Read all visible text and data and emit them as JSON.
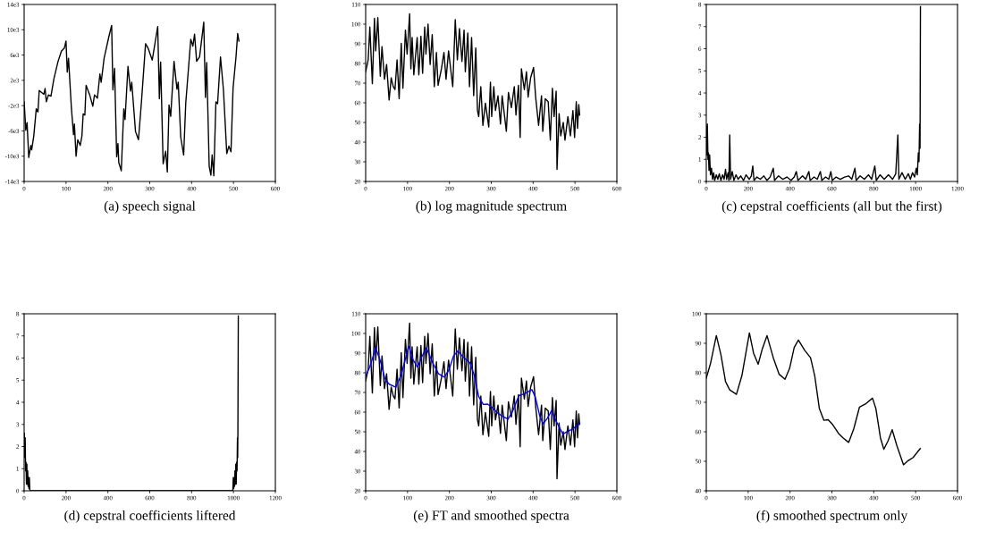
{
  "chart_data": [
    {
      "type": "line",
      "title": "(a) speech signal",
      "xlim": [
        0,
        600
      ],
      "xticks": [
        0,
        100,
        200,
        300,
        400,
        500,
        600
      ],
      "ylim": [
        -14000,
        14000
      ],
      "yticks": [
        {
          "value": -14000,
          "label": "-14e3"
        },
        {
          "value": -10000,
          "label": "-10e3"
        },
        {
          "value": -6000,
          "label": "-6e3"
        },
        {
          "value": -2000,
          "label": "-2e3"
        },
        {
          "value": 2000,
          "label": "2e3"
        },
        {
          "value": 6000,
          "label": "6e3"
        },
        {
          "value": 10000,
          "label": "10e3"
        },
        {
          "value": 14000,
          "label": "14e3"
        }
      ],
      "series": [
        {
          "color": "#000000",
          "x": [
            0,
            4,
            7,
            11,
            16,
            18,
            23,
            29,
            33,
            36,
            47,
            50,
            53,
            58,
            64,
            71,
            81,
            89,
            96,
            100,
            103,
            106,
            113,
            118,
            120,
            124,
            128,
            134,
            138,
            141,
            145,
            148,
            152,
            157,
            164,
            168,
            175,
            181,
            184,
            191,
            202,
            209,
            212,
            216,
            221,
            224,
            226,
            232,
            238,
            241,
            248,
            254,
            257,
            266,
            273,
            280,
            290,
            296,
            306,
            319,
            323,
            326,
            332,
            338,
            342,
            346,
            350,
            358,
            365,
            368,
            374,
            381,
            386,
            398,
            403,
            407,
            412,
            419,
            429,
            433,
            436,
            442,
            446,
            449,
            453,
            458,
            462,
            469,
            476,
            484,
            489,
            494,
            499,
            506,
            510,
            513
          ],
          "values": [
            -1400,
            -5900,
            -4700,
            -10200,
            -8300,
            -9000,
            -6800,
            -2500,
            -3000,
            400,
            -200,
            700,
            -1400,
            -300,
            -500,
            2200,
            5000,
            6600,
            7100,
            8200,
            3300,
            5500,
            -2500,
            -6600,
            -4900,
            -10000,
            -7400,
            -8300,
            -6800,
            -3300,
            -3500,
            1200,
            500,
            -400,
            -2100,
            -300,
            -800,
            3000,
            1700,
            5500,
            8800,
            10700,
            500,
            3900,
            -10100,
            -8000,
            -11000,
            -12300,
            -2500,
            -4200,
            4200,
            300,
            1700,
            -6100,
            -7400,
            -1600,
            7800,
            7100,
            5200,
            10500,
            -900,
            4900,
            -11200,
            -9200,
            -12500,
            -1900,
            -3700,
            5000,
            600,
            1700,
            -7000,
            -9800,
            -1600,
            8500,
            7400,
            9300,
            5000,
            5700,
            11200,
            -700,
            4800,
            -11600,
            -13000,
            -9800,
            -13100,
            -1400,
            -1700,
            5700,
            500,
            -9600,
            -8400,
            -9300,
            800,
            5700,
            9400,
            8200
          ]
        }
      ]
    },
    {
      "type": "line",
      "title": "(b) log magnitude spectrum",
      "xlim": [
        0,
        600
      ],
      "xticks": [
        0,
        100,
        200,
        300,
        400,
        500,
        600
      ],
      "ylim": [
        20,
        110
      ],
      "yticks": [
        20,
        30,
        40,
        50,
        60,
        70,
        80,
        90,
        100,
        110
      ],
      "series": [
        {
          "color": "#000000",
          "x": [
            0,
            6,
            10,
            16,
            21,
            24,
            29,
            35,
            39,
            45,
            50,
            56,
            61,
            66,
            70,
            75,
            80,
            85,
            89,
            95,
            99,
            105,
            108,
            111,
            115,
            123,
            127,
            132,
            136,
            141,
            144,
            149,
            154,
            159,
            164,
            169,
            173,
            181,
            187,
            192,
            198,
            208,
            214,
            219,
            224,
            230,
            235,
            238,
            244,
            248,
            253,
            258,
            263,
            267,
            270,
            275,
            280,
            286,
            294,
            298,
            301,
            306,
            310,
            316,
            322,
            326,
            336,
            341,
            348,
            355,
            359,
            365,
            369,
            372,
            379,
            384,
            388,
            394,
            401,
            406,
            413,
            420,
            423,
            429,
            436,
            441,
            446,
            450,
            455,
            457,
            462,
            466,
            472,
            476,
            483,
            489,
            495,
            499,
            503,
            506,
            509,
            511
          ],
          "values": [
            75.8,
            81.8,
            98.5,
            69.7,
            103,
            86.4,
            103.3,
            73.5,
            88.6,
            72,
            79.5,
            61.4,
            72.7,
            68.2,
            66.7,
            81.8,
            62.1,
            90.2,
            67.4,
            97,
            84.8,
            105.3,
            77.3,
            93.2,
            74.2,
            93.2,
            74.2,
            93.9,
            75,
            98.5,
            84.8,
            100,
            79.5,
            94.7,
            68.2,
            85.6,
            68.9,
            77.3,
            85.6,
            72,
            86.4,
            68.2,
            102.3,
            81.8,
            97.7,
            81,
            97,
            75.8,
            95.5,
            68.2,
            93.2,
            63.6,
            87.9,
            56.1,
            53,
            68.2,
            48.5,
            59.8,
            47.7,
            70.5,
            53,
            68.2,
            56.1,
            63.6,
            49.2,
            63.6,
            45.5,
            65.2,
            57.6,
            68.2,
            53.8,
            68.9,
            42.4,
            77.3,
            66.7,
            75.8,
            62.9,
            72.7,
            78,
            62.9,
            48.5,
            63.6,
            45.5,
            62.1,
            60.6,
            41,
            67.4,
            53,
            65.9,
            26.1,
            54.5,
            43.2,
            50,
            41,
            53,
            43.2,
            56.1,
            42.4,
            60.6,
            47,
            59.1,
            53.8
          ]
        }
      ]
    },
    {
      "type": "line",
      "title": "(c) cepstral coefficients (all but the first)",
      "xlim": [
        0,
        1200
      ],
      "xticks": [
        0,
        200,
        400,
        600,
        800,
        1000,
        1200
      ],
      "ylim": [
        0,
        8
      ],
      "yticks": [
        0,
        1,
        2,
        3,
        4,
        5,
        6,
        7,
        8
      ],
      "series": [
        {
          "color": "#000000",
          "x": [
            1,
            3,
            5,
            8,
            10,
            13,
            16,
            20,
            25,
            30,
            35,
            40,
            48,
            55,
            62,
            70,
            78,
            85,
            92,
            97,
            104,
            108,
            112,
            116,
            124,
            132,
            142,
            152,
            165,
            178,
            190,
            205,
            215,
            222,
            228,
            242,
            258,
            275,
            290,
            305,
            320,
            326,
            345,
            365,
            385,
            405,
            420,
            430,
            438,
            460,
            475,
            490,
            496,
            515,
            530,
            545,
            552,
            570,
            585,
            595,
            602,
            620,
            640,
            660,
            680,
            695,
            710,
            716,
            735,
            755,
            775,
            790,
            805,
            812,
            830,
            850,
            870,
            890,
            905,
            915,
            920,
            935,
            950,
            965,
            975,
            985,
            995,
            1003,
            1008,
            1013,
            1016,
            1019,
            1021,
            1023
          ],
          "values": [
            2.5,
            1.2,
            2.6,
            1.0,
            1.3,
            0.5,
            1.2,
            0.3,
            0.6,
            0.1,
            0.4,
            0.05,
            0.3,
            0.1,
            0.35,
            0.05,
            0.3,
            0.1,
            0.55,
            0.1,
            0.4,
            0.05,
            2.1,
            0.1,
            0.45,
            0.05,
            0.3,
            0.1,
            0.25,
            0.05,
            0.3,
            0.1,
            0.25,
            0.7,
            0.05,
            0.2,
            0.1,
            0.25,
            0.05,
            0.2,
            0.6,
            0.05,
            0.25,
            0.1,
            0.2,
            0.05,
            0.2,
            0.45,
            0.05,
            0.25,
            0.1,
            0.45,
            0.05,
            0.2,
            0.1,
            0.45,
            0.05,
            0.2,
            0.1,
            0.45,
            0.05,
            0.2,
            0.1,
            0.2,
            0.25,
            0.1,
            0.6,
            0.05,
            0.25,
            0.1,
            0.3,
            0.1,
            0.7,
            0.05,
            0.3,
            0.1,
            0.3,
            0.1,
            0.35,
            2.1,
            0.1,
            0.4,
            0.1,
            0.35,
            0.1,
            0.4,
            0.2,
            0.6,
            0.3,
            1.3,
            0.9,
            2.6,
            1.5,
            7.9
          ]
        }
      ]
    },
    {
      "type": "line",
      "title": "(d) cepstral coefficients liftered",
      "xlim": [
        0,
        1200
      ],
      "xticks": [
        0,
        200,
        400,
        600,
        800,
        1000,
        1200
      ],
      "ylim": [
        0,
        8
      ],
      "yticks": [
        0,
        1,
        2,
        3,
        4,
        5,
        6,
        7,
        8
      ],
      "series": [
        {
          "color": "#000000",
          "x": [
            1,
            3,
            5,
            7,
            9,
            11,
            13,
            15,
            17,
            19,
            21,
            23,
            25,
            27,
            29,
            995,
            997,
            999,
            1001,
            1003,
            1005,
            1007,
            1009,
            1011,
            1013,
            1015,
            1017,
            1019,
            1020,
            1021,
            1023
          ],
          "values": [
            2.6,
            1.5,
            2.4,
            0.9,
            1.3,
            0.3,
            1.2,
            0.3,
            0.9,
            0.2,
            0.6,
            0.1,
            0.6,
            0.05,
            0,
            0,
            0.05,
            0.6,
            0.1,
            0.6,
            0.2,
            0.9,
            0.3,
            1.2,
            0.3,
            1.3,
            0.9,
            2.4,
            1.5,
            2.6,
            7.9
          ]
        }
      ]
    },
    {
      "type": "line",
      "title": "(e) FT and smoothed spectra",
      "xlim": [
        0,
        600
      ],
      "xticks": [
        0,
        100,
        200,
        300,
        400,
        500,
        600
      ],
      "ylim": [
        20,
        110
      ],
      "yticks": [
        20,
        30,
        40,
        50,
        60,
        70,
        80,
        90,
        100,
        110
      ],
      "series": [
        {
          "color": "#000000",
          "x": [
            0,
            6,
            10,
            16,
            21,
            24,
            29,
            35,
            39,
            45,
            50,
            56,
            61,
            66,
            70,
            75,
            80,
            85,
            89,
            95,
            99,
            105,
            108,
            111,
            115,
            123,
            127,
            132,
            136,
            141,
            144,
            149,
            154,
            159,
            164,
            169,
            173,
            181,
            187,
            192,
            198,
            208,
            214,
            219,
            224,
            230,
            235,
            238,
            244,
            248,
            253,
            258,
            263,
            267,
            270,
            275,
            280,
            286,
            294,
            298,
            301,
            306,
            310,
            316,
            322,
            326,
            336,
            341,
            348,
            355,
            359,
            365,
            369,
            372,
            379,
            384,
            388,
            394,
            401,
            406,
            413,
            420,
            423,
            429,
            436,
            441,
            446,
            450,
            455,
            457,
            462,
            466,
            472,
            476,
            483,
            489,
            495,
            499,
            503,
            506,
            509,
            511
          ],
          "values": [
            75.8,
            81.8,
            98.5,
            69.7,
            103,
            86.4,
            103.3,
            73.5,
            88.6,
            72,
            79.5,
            61.4,
            72.7,
            68.2,
            66.7,
            81.8,
            62.1,
            90.2,
            67.4,
            97,
            84.8,
            105.3,
            77.3,
            93.2,
            74.2,
            93.2,
            74.2,
            93.9,
            75,
            98.5,
            84.8,
            100,
            79.5,
            94.7,
            68.2,
            85.6,
            68.9,
            77.3,
            85.6,
            72,
            86.4,
            68.2,
            102.3,
            81.8,
            97.7,
            81,
            97,
            75.8,
            95.5,
            68.2,
            93.2,
            63.6,
            87.9,
            56.1,
            53,
            68.2,
            48.5,
            59.8,
            47.7,
            70.5,
            53,
            68.2,
            56.1,
            63.6,
            49.2,
            63.6,
            45.5,
            65.2,
            57.6,
            68.2,
            53.8,
            68.9,
            42.4,
            77.3,
            66.7,
            75.8,
            62.9,
            72.7,
            78,
            62.9,
            48.5,
            63.6,
            45.5,
            62.1,
            60.6,
            41,
            67.4,
            53,
            65.9,
            26.1,
            54.5,
            43.2,
            50,
            41,
            53,
            43.2,
            56.1,
            42.4,
            60.6,
            47,
            59.1,
            53.8
          ]
        },
        {
          "color": "#0000ff",
          "x": [
            0,
            10,
            24,
            35,
            46,
            56,
            72,
            85,
            103,
            113,
            124,
            134,
            145,
            160,
            174,
            188,
            199,
            210,
            220,
            235,
            249,
            259,
            270,
            281,
            291,
            302,
            316,
            327,
            340,
            352,
            366,
            380,
            397,
            405,
            416,
            424,
            434,
            444,
            455,
            471,
            482,
            494,
            511
          ],
          "values": [
            78.2,
            83.1,
            92.6,
            86.1,
            77,
            74.2,
            72.7,
            79,
            93.5,
            86.6,
            82.9,
            88.2,
            92.6,
            85.1,
            79.5,
            77.8,
            81.5,
            88.6,
            91.1,
            87.6,
            85.1,
            79,
            67.9,
            63.9,
            64.1,
            62.4,
            59.4,
            57.9,
            56.4,
            60.9,
            68.4,
            69.4,
            71.4,
            67.9,
            57.9,
            54.1,
            56.9,
            60.7,
            55.4,
            48.8,
            50.2,
            51.3,
            54.3
          ]
        }
      ]
    },
    {
      "type": "line",
      "title": "(f) smoothed spectrum only",
      "xlim": [
        0,
        600
      ],
      "xticks": [
        0,
        100,
        200,
        300,
        400,
        500,
        600
      ],
      "ylim": [
        40,
        100
      ],
      "yticks": [
        40,
        50,
        60,
        70,
        80,
        90,
        100
      ],
      "series": [
        {
          "color": "#000000",
          "x": [
            0,
            10,
            24,
            35,
            46,
            56,
            72,
            85,
            103,
            113,
            124,
            134,
            145,
            160,
            174,
            188,
            199,
            210,
            220,
            235,
            249,
            259,
            270,
            281,
            291,
            302,
            316,
            327,
            340,
            352,
            366,
            380,
            397,
            405,
            416,
            424,
            434,
            444,
            455,
            471,
            482,
            494,
            511
          ],
          "values": [
            78.2,
            83.1,
            92.6,
            86.1,
            77,
            74.2,
            72.7,
            79,
            93.5,
            86.6,
            82.9,
            88.2,
            92.6,
            85.1,
            79.5,
            77.8,
            81.5,
            88.6,
            91.1,
            87.6,
            85.1,
            79,
            67.9,
            63.9,
            64.1,
            62.4,
            59.4,
            57.9,
            56.4,
            60.9,
            68.4,
            69.4,
            71.4,
            67.9,
            57.9,
            54.1,
            56.9,
            60.7,
            55.4,
            48.8,
            50.2,
            51.3,
            54.3
          ]
        }
      ]
    }
  ]
}
